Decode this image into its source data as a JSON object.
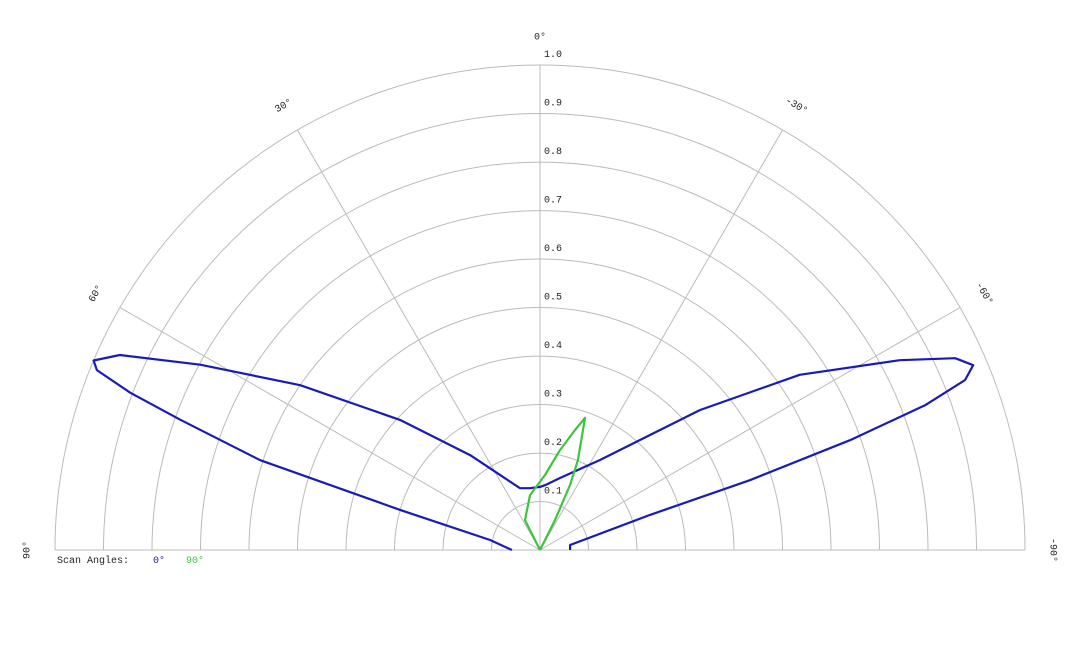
{
  "chart_data": {
    "type": "polar",
    "legend_title": "Scan Angles:",
    "rlim": [
      0,
      1
    ],
    "rticks": [
      0.1,
      0.2,
      0.3,
      0.4,
      0.5,
      0.6,
      0.7,
      0.8,
      0.9,
      {
        "value": 1,
        "label": "1.0"
      }
    ],
    "angle_ticks": [
      {
        "value": 90,
        "label": "90°"
      },
      {
        "value": 60,
        "label": "60°"
      },
      {
        "value": 30,
        "label": "30°"
      },
      {
        "value": 0,
        "label": "0°"
      },
      {
        "value": -30,
        "label": "-30°"
      },
      {
        "value": -60,
        "label": "-60°"
      },
      {
        "value": -90,
        "label": "-90°"
      }
    ],
    "grid": true,
    "series": [
      {
        "name": "0°",
        "color": "#1a1ab8",
        "angles": [
          90,
          78.7,
          74,
          72.2,
          70.1,
          69,
          67.9,
          67,
          65.1,
          61.4,
          55.5,
          47.1,
          36.4,
          28,
          17.9,
          9.2,
          0,
          -4.4,
          -15.5,
          -33.7,
          -48.8,
          -56,
          -62.2,
          -65.2,
          -66.9,
          -68.2,
          -69.4,
          -70.5,
          -71.6,
          -72.3,
          -80.5,
          -90
        ],
        "values": [
          0.058,
          0.105,
          0.3,
          0.606,
          0.789,
          0.905,
          0.986,
          1.0,
          0.955,
          0.798,
          0.6,
          0.394,
          0.243,
          0.175,
          0.134,
          0.129,
          0.13,
          0.134,
          0.154,
          0.223,
          0.438,
          0.646,
          0.839,
          0.943,
          0.971,
          0.944,
          0.848,
          0.678,
          0.456,
          0.238,
          0.063,
          0.062
        ]
      },
      {
        "name": "90°",
        "color": "#3ec43e",
        "angles": [
          40,
          26.6,
          10.3,
          -3.8,
          -11.3,
          -16.3,
          -18.8,
          -19.7,
          -22.9,
          -24.8,
          -26.6,
          -40
        ],
        "values": [
          0,
          0.069,
          0.115,
          0.155,
          0.21,
          0.258,
          0.288,
          0.263,
          0.201,
          0.148,
          0.069,
          0
        ]
      }
    ]
  }
}
